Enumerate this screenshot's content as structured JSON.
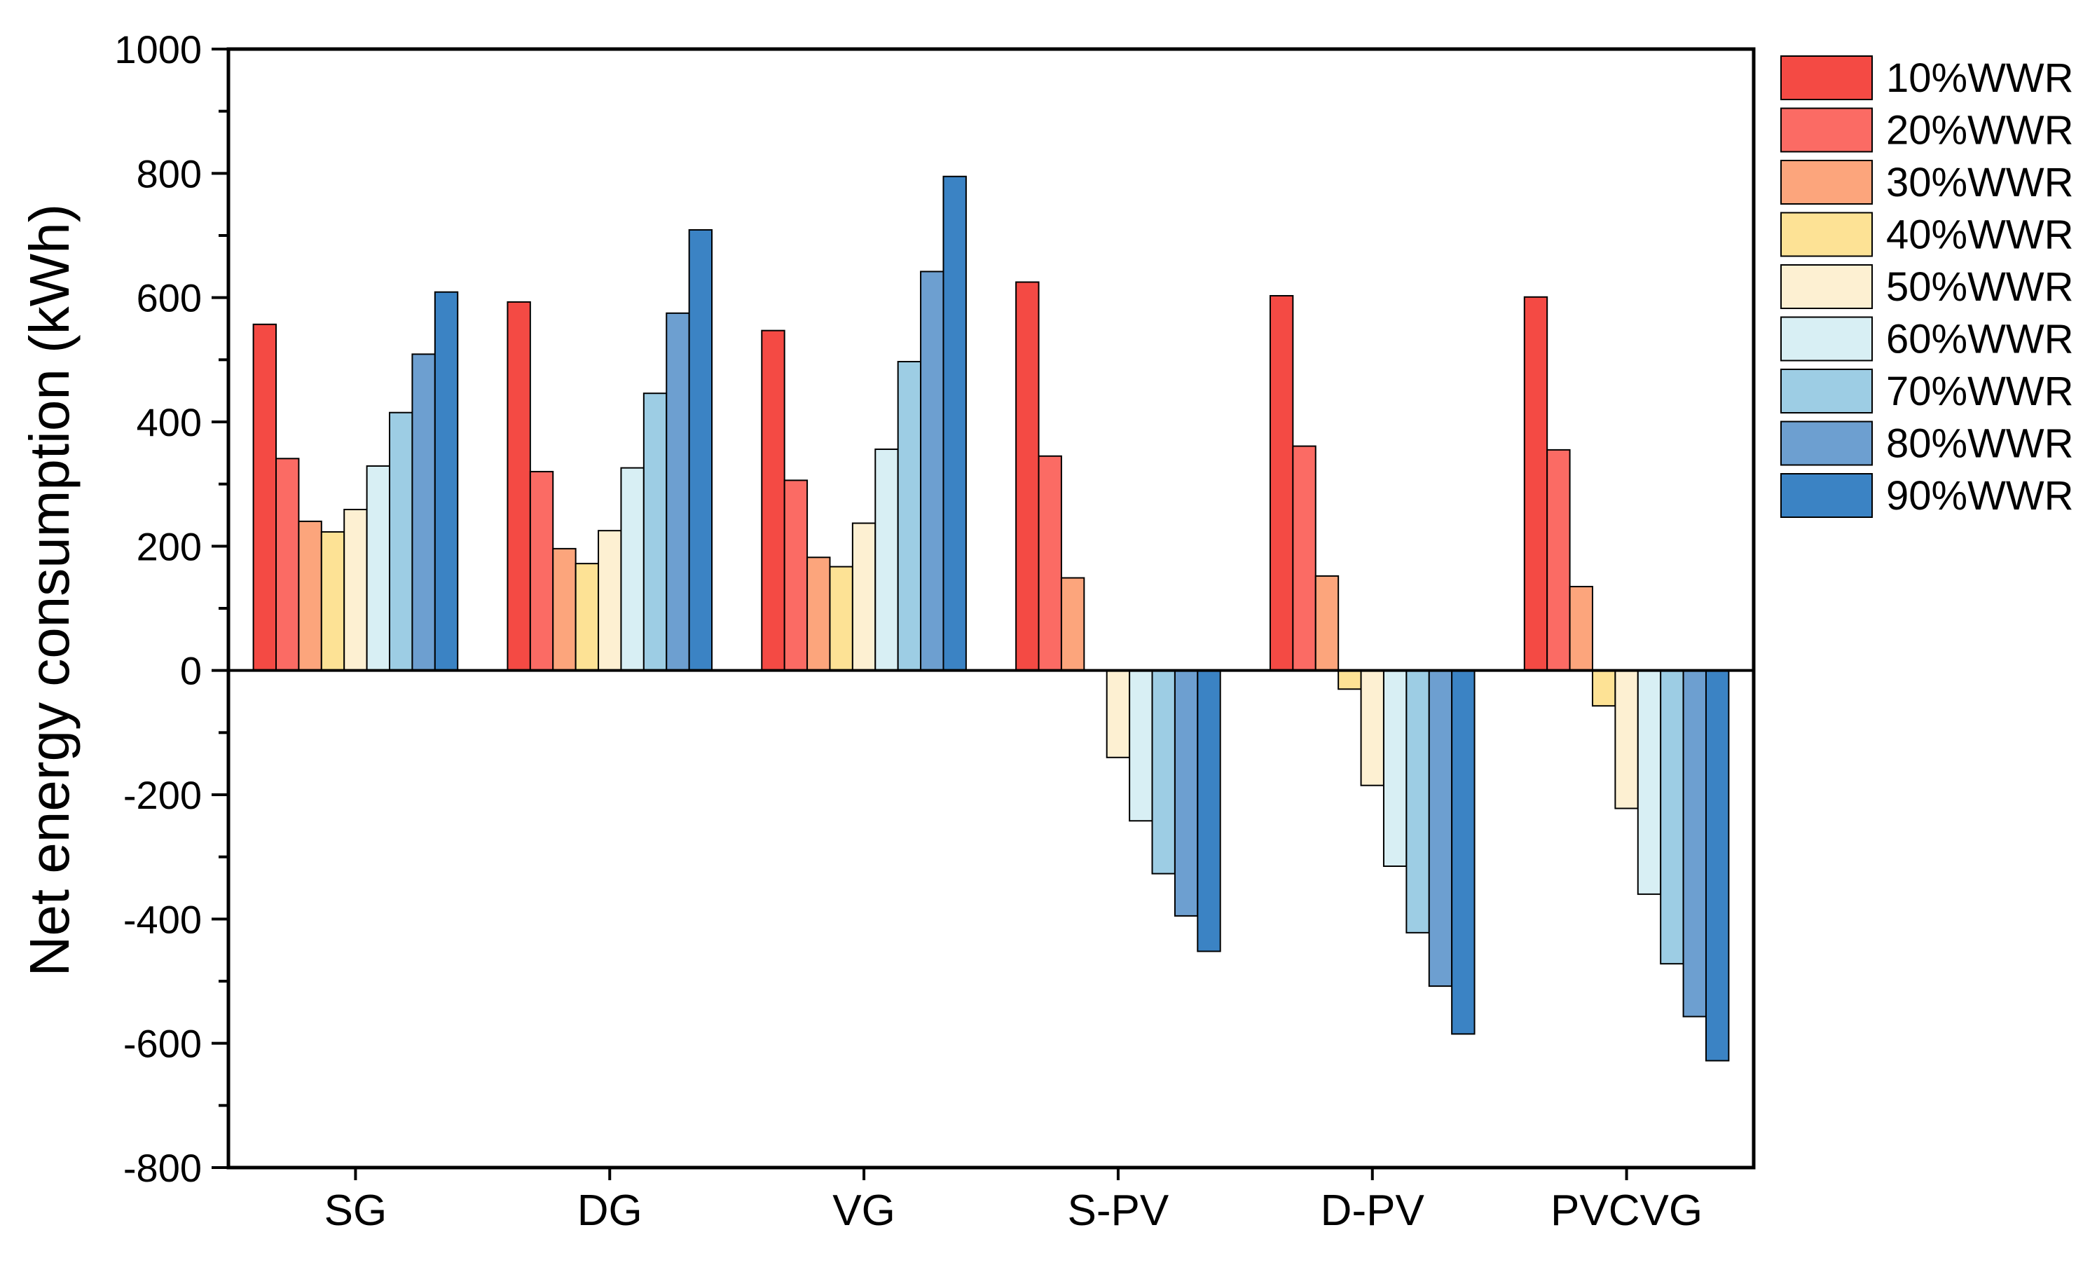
{
  "chart_data": {
    "type": "bar",
    "title": "",
    "xlabel": "",
    "ylabel": "Net energy consumption (kWh)",
    "ylim": [
      -800,
      1000
    ],
    "yticks": [
      1000,
      800,
      600,
      400,
      200,
      0,
      -200,
      -400,
      -600,
      -800
    ],
    "ytick_labels": [
      "1000",
      "800",
      "600",
      "400",
      "200",
      "0",
      "-200",
      "-400",
      "-600",
      "-800"
    ],
    "categories": [
      "SG",
      "DG",
      "VG",
      "S-PV",
      "D-PV",
      "PVCVG"
    ],
    "legend_position": "right",
    "series": [
      {
        "name": "10%WWR",
        "color": "#f44a44",
        "values": [
          557,
          593,
          547,
          625,
          603,
          601
        ]
      },
      {
        "name": "20%WWR",
        "color": "#fb6b64",
        "values": [
          341,
          320,
          306,
          345,
          361,
          355
        ]
      },
      {
        "name": "30%WWR",
        "color": "#fca57c",
        "values": [
          240,
          196,
          182,
          149,
          152,
          135
        ]
      },
      {
        "name": "40%WWR",
        "color": "#fde295",
        "values": [
          223,
          172,
          167,
          0,
          -30,
          -57
        ]
      },
      {
        "name": "50%WWR",
        "color": "#fdf0d2",
        "values": [
          259,
          225,
          237,
          -140,
          -185,
          -222
        ]
      },
      {
        "name": "60%WWR",
        "color": "#d8eff4",
        "values": [
          329,
          326,
          356,
          -242,
          -315,
          -360
        ]
      },
      {
        "name": "70%WWR",
        "color": "#9dcde4",
        "values": [
          415,
          446,
          497,
          -327,
          -422,
          -472
        ]
      },
      {
        "name": "80%WWR",
        "color": "#6d9fd0",
        "values": [
          509,
          575,
          642,
          -395,
          -508,
          -557
        ]
      },
      {
        "name": "90%WWR",
        "color": "#3b83c4",
        "values": [
          609,
          709,
          795,
          -452,
          -585,
          -628
        ]
      }
    ]
  }
}
